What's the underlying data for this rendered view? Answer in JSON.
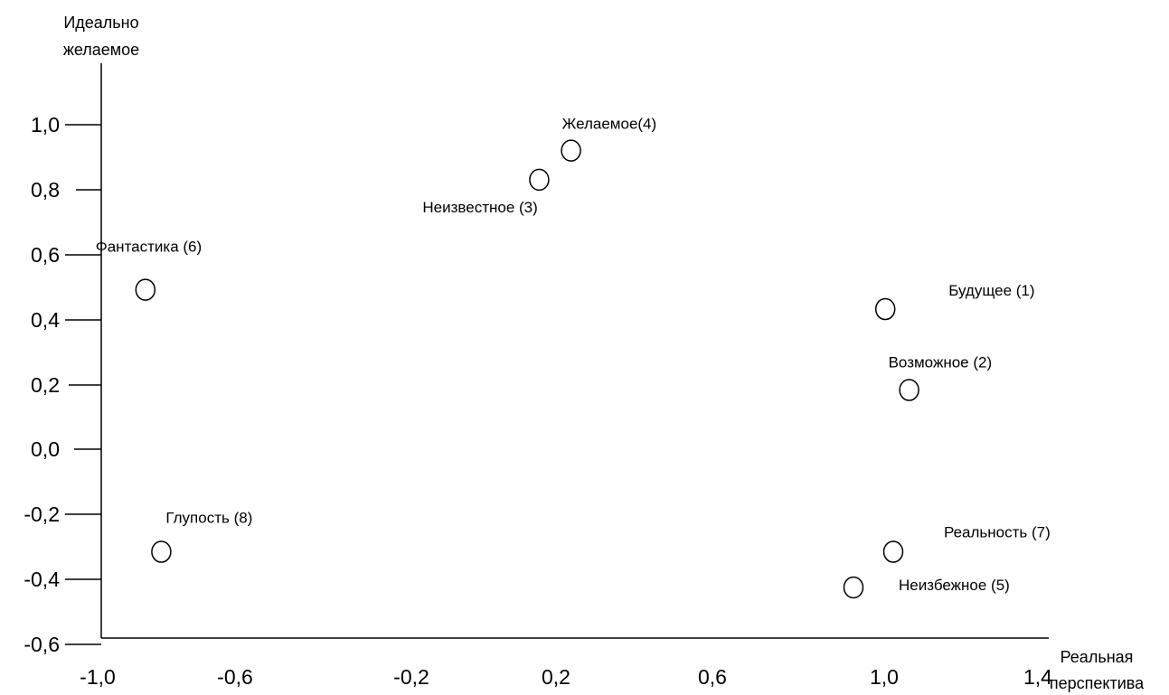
{
  "chart_data": {
    "type": "scatter",
    "ylabel_lines": [
      "Идеально",
      "желаемое"
    ],
    "xlabel_lines": [
      "Реальная",
      "перспектива"
    ],
    "x_ticks": [
      "-1,0",
      "-0,6",
      "-0,2",
      "0,2",
      "0,6",
      "1,0",
      "1,4"
    ],
    "y_ticks": [
      "1,0",
      "0,8",
      "0,6",
      "0,4",
      "0,2",
      "0,0",
      "-0,2",
      "-0,4",
      "-0,6"
    ],
    "xlim": [
      -1.0,
      1.4
    ],
    "ylim": [
      -0.6,
      1.0
    ],
    "grid": false,
    "marker": "open-circle",
    "points": [
      {
        "label": "Будущее (1)",
        "x": 0.98,
        "y": 0.43
      },
      {
        "label": "Возможное (2)",
        "x": 1.04,
        "y": 0.18
      },
      {
        "label": "Неизвестное (3)",
        "x": 0.11,
        "y": 0.83
      },
      {
        "label": "Желаемое(4)",
        "x": 0.19,
        "y": 0.92
      },
      {
        "label": "Неизбежное (5)",
        "x": 0.9,
        "y": -0.43
      },
      {
        "label": "Фантастика (6)",
        "x": -0.88,
        "y": 0.49
      },
      {
        "label": "Реальность (7)",
        "x": 1.0,
        "y": -0.32
      },
      {
        "label": "Глупость (8)",
        "x": -0.84,
        "y": -0.32
      }
    ]
  }
}
